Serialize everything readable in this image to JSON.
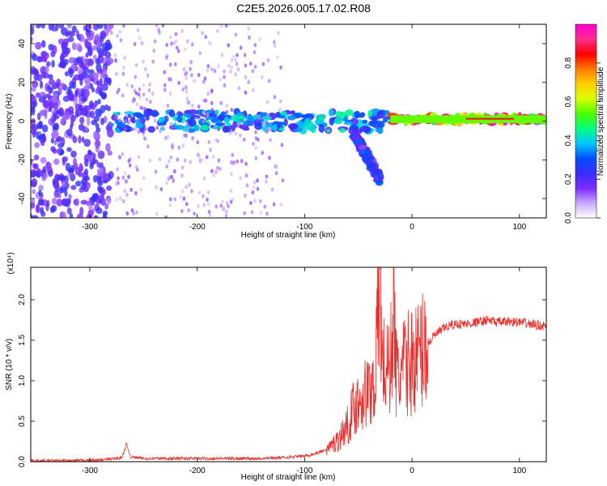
{
  "title": "C2E5.2026.005.17.02.R08",
  "colors": {
    "snr_line": "#e8302e",
    "axis": "#000000",
    "colormap": [
      "#ffffff",
      "#c9a8ff",
      "#7a2bff",
      "#3a2cff",
      "#0050ff",
      "#00c8ff",
      "#00ff80",
      "#4cff00",
      "#d8ff00",
      "#ffd000",
      "#ff7a00",
      "#ff0000",
      "#ff2e8c",
      "#ff00d0"
    ]
  },
  "chart_data": [
    {
      "type": "heatmap",
      "name": "spectrogram",
      "xlabel": "Height of straight line (km)",
      "ylabel": "Frequency (Hz)",
      "xlim": [
        -355,
        125
      ],
      "ylim": [
        -50,
        50
      ],
      "xticks": [
        -300,
        -200,
        -100,
        0,
        100
      ],
      "yticks": [
        -40,
        -20,
        0,
        20,
        40
      ],
      "colorbar": {
        "label": "Normalized spectral amplitude",
        "range": [
          0,
          1
        ],
        "ticks": [
          "0.0",
          "0.2",
          "0.4",
          "0.6",
          "0.8"
        ],
        "tick_values": [
          0.0,
          0.2,
          0.4,
          0.6,
          0.8
        ]
      },
      "features": [
        {
          "name": "noise region (wide spread)",
          "x_range": [
            -355,
            -280
          ],
          "freq_range": [
            -50,
            50
          ],
          "amplitude": 0.2
        },
        {
          "name": "main carrier band",
          "x_range": [
            -280,
            -20
          ],
          "freq_range": [
            -5,
            5
          ],
          "amplitude": 0.35
        },
        {
          "name": "split branch",
          "x_range": [
            -55,
            -30
          ],
          "freq_range": [
            -30,
            -5
          ],
          "amplitude": 0.25
        },
        {
          "name": "strong carrier",
          "x_range": [
            -20,
            125
          ],
          "freq_range": [
            -1,
            3
          ],
          "amplitude": 0.85
        }
      ]
    },
    {
      "type": "line",
      "name": "snr",
      "xlabel": "Height of straight line (km)",
      "ylabel": "SNR (10 * v/v)",
      "yscale_label": "(x10⁴)",
      "xlim": [
        -355,
        125
      ],
      "ylim": [
        0,
        2.4
      ],
      "xticks": [
        -300,
        -200,
        -100,
        0,
        100
      ],
      "yticks": [
        0.0,
        0.5,
        1.0,
        1.5,
        2.0
      ],
      "ytick_labels": [
        "0.0",
        "0.5",
        "1.0",
        "1.5",
        "2.0"
      ],
      "series": [
        {
          "name": "SNR",
          "x": [
            -355,
            -320,
            -290,
            -270,
            -266,
            -262,
            -250,
            -200,
            -150,
            -120,
            -100,
            -90,
            -80,
            -70,
            -60,
            -55,
            -50,
            -45,
            -40,
            -35,
            -32,
            -30,
            -28,
            -25,
            -20,
            -17,
            -15,
            -12,
            -10,
            -8,
            -5,
            0,
            5,
            10,
            15,
            20,
            25,
            30,
            35,
            40,
            50,
            60,
            70,
            80,
            90,
            100,
            110,
            120,
            125
          ],
          "values": [
            0.01,
            0.01,
            0.02,
            0.05,
            0.22,
            0.06,
            0.04,
            0.04,
            0.04,
            0.05,
            0.07,
            0.1,
            0.15,
            0.25,
            0.45,
            0.65,
            0.75,
            0.85,
            0.85,
            1.0,
            1.6,
            2.4,
            1.3,
            1.1,
            1.2,
            2.0,
            1.1,
            1.0,
            1.1,
            1.15,
            1.2,
            1.25,
            1.3,
            1.4,
            1.45,
            1.55,
            1.6,
            1.65,
            1.68,
            1.7,
            1.7,
            1.72,
            1.75,
            1.72,
            1.73,
            1.72,
            1.7,
            1.68,
            1.67
          ]
        }
      ]
    }
  ]
}
